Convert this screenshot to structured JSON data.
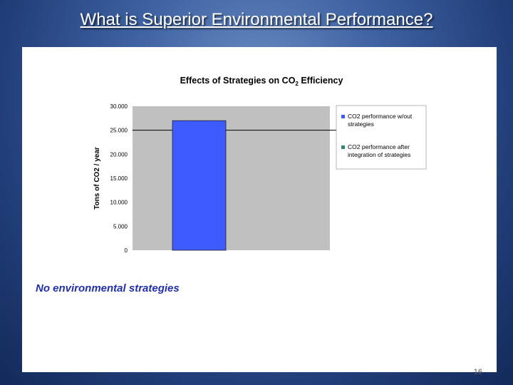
{
  "slide": {
    "title": "What is Superior Environmental Performance?",
    "caption": "No environmental strategies",
    "page_number": "16"
  },
  "chart_data": {
    "type": "bar",
    "title_main": "Effects of Strategies on CO",
    "title_sub": "2",
    "title_tail": " Efficiency",
    "ylabel": "Tons of CO2 / year",
    "ylim": [
      0,
      30000
    ],
    "yticks": [
      "0",
      "5.000",
      "10.000",
      "15.000",
      "20.000",
      "25.000",
      "30.000"
    ],
    "gridline_at": 25000,
    "series": [
      {
        "name_line1": "CO2 performance w/out",
        "name_line2": "strategies",
        "color": "#3d5bff",
        "values": [
          27000
        ]
      },
      {
        "name_line1": "CO2 performance after",
        "name_line2": "integration of strategies",
        "color": "#2f8a6a",
        "values": []
      }
    ],
    "plot_bg": "#c0c0c0"
  }
}
